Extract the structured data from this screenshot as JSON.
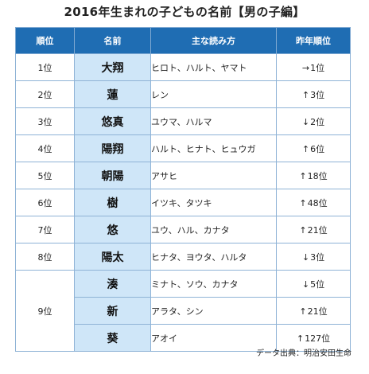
{
  "title": "2016年生まれの子どもの名前【男の子編】",
  "headers": {
    "rank": "順位",
    "name": "名前",
    "reading": "主な読み方",
    "prev": "昨年順位"
  },
  "rows": [
    {
      "rank": "1位",
      "name": "大翔",
      "reading": "ヒロト、ハルト、ヤマト",
      "prev_arrow": "→",
      "prev": "1位"
    },
    {
      "rank": "2位",
      "name": "蓮",
      "reading": "レン",
      "prev_arrow": "↑",
      "prev": "3位"
    },
    {
      "rank": "3位",
      "name": "悠真",
      "reading": "ユウマ、ハルマ",
      "prev_arrow": "↓",
      "prev": "2位"
    },
    {
      "rank": "4位",
      "name": "陽翔",
      "reading": "ハルト、ヒナト、ヒュウガ",
      "prev_arrow": "↑",
      "prev": "6位"
    },
    {
      "rank": "5位",
      "name": "朝陽",
      "reading": "アサヒ",
      "prev_arrow": "↑",
      "prev": "18位"
    },
    {
      "rank": "6位",
      "name": "樹",
      "reading": "イツキ、タツキ",
      "prev_arrow": "↑",
      "prev": "48位"
    },
    {
      "rank": "7位",
      "name": "悠",
      "reading": "ユウ、ハル、カナタ",
      "prev_arrow": "↑",
      "prev": "21位"
    },
    {
      "rank": "8位",
      "name": "陽太",
      "reading": "ヒナタ、ヨウタ、ハルタ",
      "prev_arrow": "↓",
      "prev": "3位"
    }
  ],
  "group9": {
    "rank": "9位",
    "items": [
      {
        "name": "湊",
        "reading": "ミナト、ソウ、カナタ",
        "prev_arrow": "↓",
        "prev": "5位"
      },
      {
        "name": "新",
        "reading": "アラタ、シン",
        "prev_arrow": "↑",
        "prev": "21位"
      },
      {
        "name": "葵",
        "reading": "アオイ",
        "prev_arrow": "↑",
        "prev": "127位"
      }
    ]
  },
  "source": "データ出典：明治安田生命"
}
